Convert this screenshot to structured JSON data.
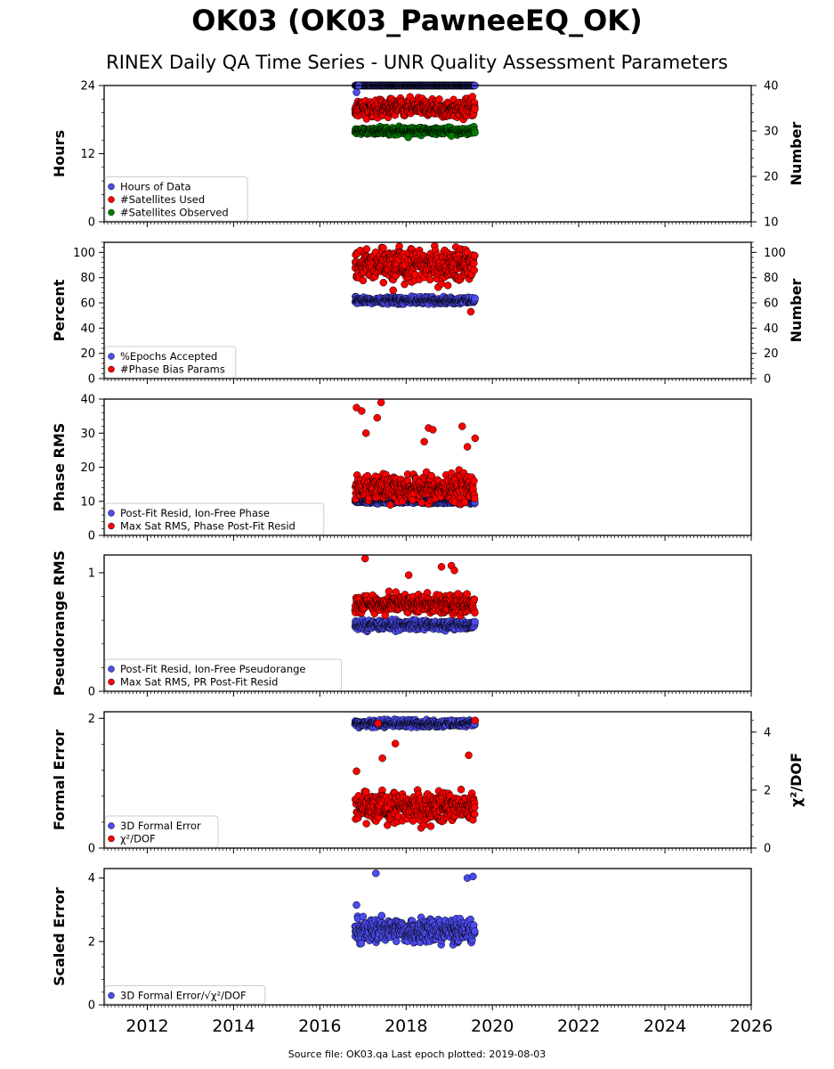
{
  "title": "OK03 (OK03_PawneeEQ_OK)",
  "subtitle": "RINEX Daily QA Time Series - UNR Quality Assessment Parameters",
  "footer": {
    "source_label": "Source file:",
    "source_file": "OK03.qa",
    "last_epoch_label": "Last epoch plotted:",
    "last_epoch": "2019-08-03"
  },
  "colors": {
    "blue": "#4b4bf0",
    "red": "#ff0000",
    "green": "#008000",
    "edge": "#000000"
  },
  "chart_data": [
    {
      "type": "scatter",
      "x_range": [
        2011.0,
        2026.0
      ],
      "x_ticks": [
        "2012",
        "2014",
        "2016",
        "2018",
        "2020",
        "2022",
        "2024",
        "2026"
      ],
      "ylabel": "Hours",
      "ylim": [
        0,
        24
      ],
      "yticks": [
        "0",
        "12",
        "24"
      ],
      "y2label": "Number",
      "y2lim": [
        10,
        40
      ],
      "y2ticks": [
        "10",
        "20",
        "30",
        "40"
      ],
      "legend": [
        "Hours of Data",
        "#Satellites Used",
        "#Satellites Observed"
      ],
      "series": [
        {
          "name": "Hours of Data",
          "color": "blue",
          "axis": "left",
          "base": 24.0,
          "noise": 0.0,
          "outliers": [
            [
              2016.85,
              22.8
            ],
            [
              2016.9,
              24
            ]
          ]
        },
        {
          "name": "#Satellites Used",
          "color": "red",
          "axis": "right",
          "base": 35.0,
          "noise": 1.5,
          "outliers": []
        },
        {
          "name": "#Satellites Observed",
          "color": "green",
          "axis": "right",
          "base": 30.0,
          "noise": 0.6,
          "outliers": [
            [
              2018.05,
              28.6
            ],
            [
              2019.05,
              28.9
            ]
          ]
        }
      ]
    },
    {
      "type": "scatter",
      "x_range": [
        2011.0,
        2026.0
      ],
      "ylabel": "Percent",
      "ylim": [
        0,
        108
      ],
      "yticks": [
        "0",
        "20",
        "40",
        "60",
        "80",
        "100"
      ],
      "y2label": "Number",
      "y2lim": [
        0,
        108
      ],
      "y2ticks": [
        "0",
        "20",
        "40",
        "60",
        "80",
        "100"
      ],
      "legend": [
        "%Epochs Accepted",
        "#Phase Bias Params"
      ],
      "series": [
        {
          "name": "%Epochs Accepted",
          "color": "blue",
          "axis": "left",
          "base": 62.0,
          "noise": 2.0,
          "outliers": []
        },
        {
          "name": "#Phase Bias Params",
          "color": "red",
          "axis": "right",
          "base": 90.0,
          "noise": 10.0,
          "outliers": [
            [
              2017.7,
              70
            ],
            [
              2019.5,
              53
            ]
          ]
        }
      ]
    },
    {
      "type": "scatter",
      "x_range": [
        2011.0,
        2026.0
      ],
      "ylabel": "Phase RMS",
      "ylim": [
        0,
        40
      ],
      "yticks": [
        "0",
        "10",
        "20",
        "30",
        "40"
      ],
      "legend": [
        "Post-Fit Resid, Ion-Free Phase",
        "Max Sat RMS, Phase Post-Fit Resid"
      ],
      "series": [
        {
          "name": "Post-Fit Resid, Ion-Free Phase",
          "color": "blue",
          "axis": "left",
          "base": 10.0,
          "noise": 0.5,
          "outliers": []
        },
        {
          "name": "Max Sat RMS, Phase Post-Fit Resid",
          "color": "red",
          "axis": "left",
          "base": 14.0,
          "noise": 3.0,
          "outliers": [
            [
              2016.85,
              37.5
            ],
            [
              2016.97,
              36.5
            ],
            [
              2017.07,
              30
            ],
            [
              2017.33,
              34.5
            ],
            [
              2017.42,
              39
            ],
            [
              2018.42,
              27.5
            ],
            [
              2018.52,
              31.5
            ],
            [
              2018.62,
              31
            ],
            [
              2019.3,
              32
            ],
            [
              2019.42,
              26
            ],
            [
              2019.6,
              28.5
            ]
          ]
        }
      ]
    },
    {
      "type": "scatter",
      "x_range": [
        2011.0,
        2026.0
      ],
      "ylabel": "Pseudorange RMS",
      "ylim": [
        0,
        1.15
      ],
      "yticks": [
        "0",
        "1"
      ],
      "legend": [
        "Post-Fit Resid, Ion-Free Pseudorange",
        "Max Sat RMS, PR Post-Fit Resid"
      ],
      "series": [
        {
          "name": "Post-Fit Resid, Ion-Free Pseudorange",
          "color": "blue",
          "axis": "left",
          "base": 0.56,
          "noise": 0.03,
          "outliers": []
        },
        {
          "name": "Max Sat RMS, PR Post-Fit Resid",
          "color": "red",
          "axis": "left",
          "base": 0.74,
          "noise": 0.06,
          "outliers": [
            [
              2017.05,
              1.12
            ],
            [
              2018.06,
              0.98
            ],
            [
              2018.82,
              1.05
            ],
            [
              2019.05,
              1.06
            ],
            [
              2019.12,
              1.02
            ]
          ]
        }
      ]
    },
    {
      "type": "scatter",
      "x_range": [
        2011.0,
        2026.0
      ],
      "ylabel": "Formal Error",
      "ylim": [
        0,
        2.1
      ],
      "yticks": [
        "0",
        "2"
      ],
      "y2label": "χ²/DOF",
      "y2lim": [
        0,
        4.7
      ],
      "y2ticks": [
        "0",
        "2",
        "4"
      ],
      "legend": [
        "3D Formal Error",
        "χ²/DOF"
      ],
      "series": [
        {
          "name": "3D Formal Error",
          "color": "blue",
          "axis": "left",
          "base": 1.92,
          "noise": 0.04,
          "outliers": []
        },
        {
          "name": "χ²/DOF",
          "color": "red",
          "axis": "right",
          "base": 1.4,
          "noise": 0.4,
          "outliers": [
            [
              2016.85,
              2.65
            ],
            [
              2017.75,
              3.6
            ],
            [
              2017.45,
              3.1
            ],
            [
              2019.45,
              3.2
            ],
            [
              2017.35,
              4.3
            ],
            [
              2019.6,
              4.4
            ]
          ]
        }
      ]
    },
    {
      "type": "scatter",
      "x_range": [
        2011.0,
        2026.0
      ],
      "ylabel": "Scaled Error",
      "ylim": [
        0,
        4.3
      ],
      "yticks": [
        "0",
        "2",
        "4"
      ],
      "legend": [
        "3D Formal Error/√χ²/DOF"
      ],
      "series": [
        {
          "name": "3D Formal Error/√χ²/DOF",
          "color": "blue",
          "axis": "left",
          "base": 2.35,
          "noise": 0.3,
          "outliers": [
            [
              2017.3,
              4.15
            ],
            [
              2019.42,
              4.0
            ],
            [
              2019.55,
              4.05
            ],
            [
              2016.85,
              3.15
            ]
          ]
        }
      ]
    }
  ]
}
